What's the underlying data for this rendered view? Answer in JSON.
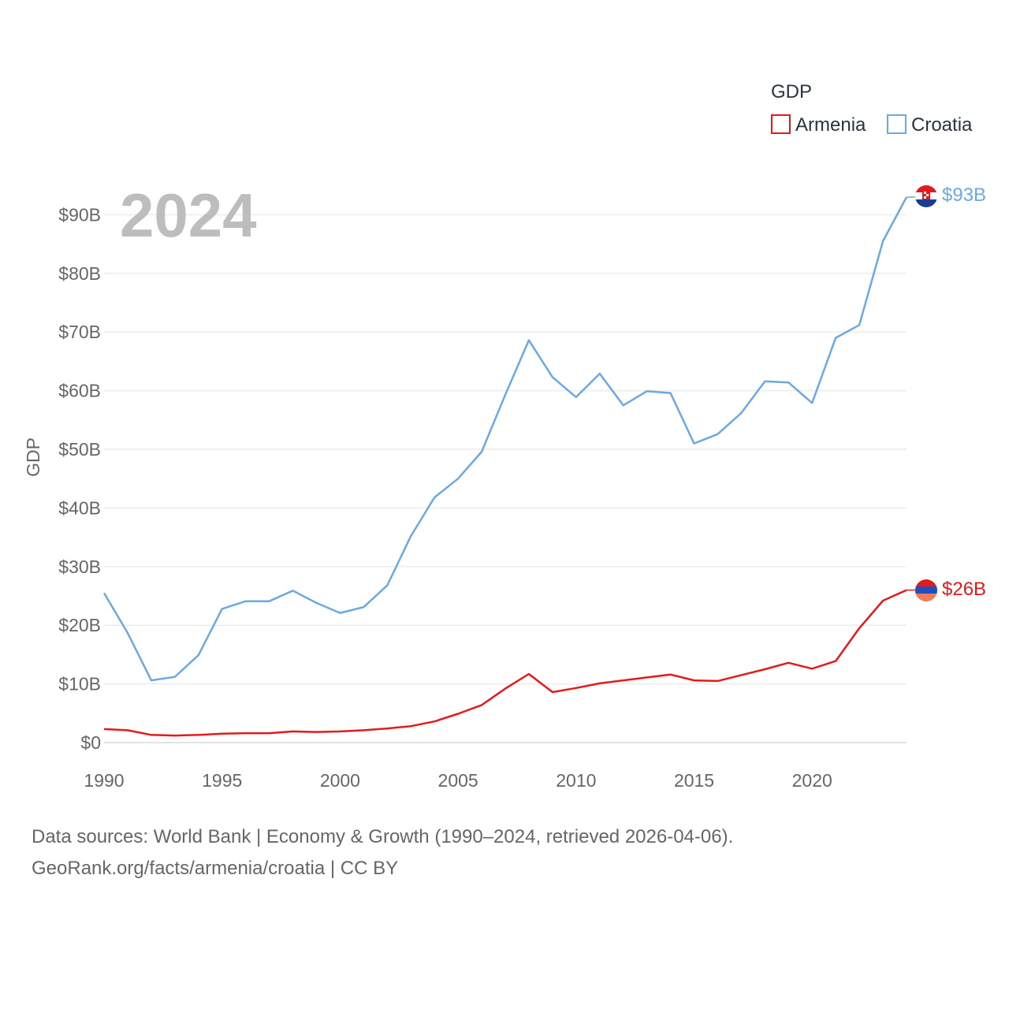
{
  "chart_data": {
    "type": "line",
    "year_label": "2024",
    "legend_title": "GDP",
    "ylabel": "GDP",
    "ylim": [
      0,
      100
    ],
    "xlim": [
      1990,
      2024
    ],
    "y_ticks": [
      {
        "value": 0,
        "label": "$0"
      },
      {
        "value": 10,
        "label": "$10B"
      },
      {
        "value": 20,
        "label": "$20B"
      },
      {
        "value": 30,
        "label": "$30B"
      },
      {
        "value": 40,
        "label": "$40B"
      },
      {
        "value": 50,
        "label": "$50B"
      },
      {
        "value": 60,
        "label": "$60B"
      },
      {
        "value": 70,
        "label": "$70B"
      },
      {
        "value": 80,
        "label": "$80B"
      },
      {
        "value": 90,
        "label": "$90B"
      }
    ],
    "x_ticks": [
      {
        "value": 1990,
        "label": "1990"
      },
      {
        "value": 1995,
        "label": "1995"
      },
      {
        "value": 2000,
        "label": "2000"
      },
      {
        "value": 2005,
        "label": "2005"
      },
      {
        "value": 2010,
        "label": "2010"
      },
      {
        "value": 2015,
        "label": "2015"
      },
      {
        "value": 2020,
        "label": "2020"
      }
    ],
    "x": [
      1990,
      1991,
      1992,
      1993,
      1994,
      1995,
      1996,
      1997,
      1998,
      1999,
      2000,
      2001,
      2002,
      2003,
      2004,
      2005,
      2006,
      2007,
      2008,
      2009,
      2010,
      2011,
      2012,
      2013,
      2014,
      2015,
      2016,
      2017,
      2018,
      2019,
      2020,
      2021,
      2022,
      2023,
      2024
    ],
    "series": [
      {
        "name": "Armenia",
        "color": "#e31a1c",
        "end_label": "$26B",
        "flag": "armenia-flag-icon",
        "values": [
          2.3,
          2.1,
          1.3,
          1.2,
          1.3,
          1.5,
          1.6,
          1.6,
          1.9,
          1.8,
          1.9,
          2.1,
          2.4,
          2.8,
          3.6,
          4.9,
          6.4,
          9.2,
          11.7,
          8.6,
          9.3,
          10.1,
          10.6,
          11.1,
          11.6,
          10.6,
          10.5,
          11.5,
          12.5,
          13.6,
          12.6,
          13.9,
          19.5,
          24.2,
          26.0
        ]
      },
      {
        "name": "Croatia",
        "color": "#6aa9e3",
        "end_label": "$93B",
        "flag": "croatia-flag-icon",
        "values": [
          25.5,
          18.7,
          10.6,
          11.2,
          14.9,
          22.8,
          24.1,
          24.1,
          25.9,
          23.8,
          22.1,
          23.1,
          26.8,
          35.2,
          41.8,
          45.0,
          49.6,
          59.3,
          68.6,
          62.3,
          58.9,
          62.9,
          57.5,
          59.9,
          59.6,
          51.0,
          52.6,
          56.2,
          61.6,
          61.4,
          57.9,
          69.0,
          71.2,
          85.5,
          93.0
        ]
      }
    ]
  },
  "footer": {
    "line1": "Data sources: World Bank | Economy & Growth (1990–2024, retrieved 2026-04-06).",
    "line2": "GeoRank.org/facts/armenia/croatia | CC BY"
  }
}
